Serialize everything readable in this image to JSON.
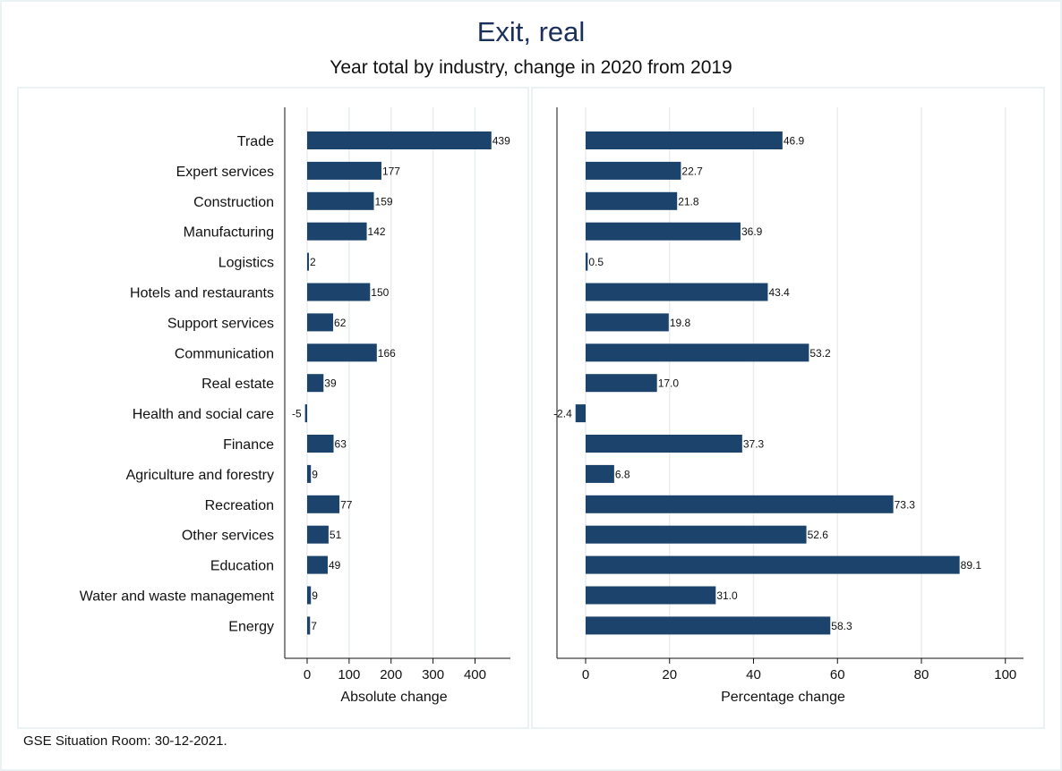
{
  "title": "Exit, real",
  "subtitle": "Year total by industry, change in 2020 from 2019",
  "footer": "GSE Situation Room: 30-12-2021.",
  "colors": {
    "bar": "#1b436b",
    "title": "#1a2f5a",
    "grid": "#e8eef0"
  },
  "chart_data": [
    {
      "type": "bar",
      "orientation": "horizontal",
      "xlabel": "Absolute change",
      "xlim": [
        -60,
        500
      ],
      "xticks": [
        0,
        100,
        200,
        300,
        400
      ],
      "grid": true,
      "categories": [
        "Trade",
        "Expert services",
        "Construction",
        "Manufacturing",
        "Logistics",
        "Hotels and restaurants",
        "Support services",
        "Communication",
        "Real estate",
        "Health and social care",
        "Finance",
        "Agriculture and forestry",
        "Recreation",
        "Other services",
        "Education",
        "Water and waste management",
        "Energy"
      ],
      "values": [
        439,
        177,
        159,
        142,
        2,
        150,
        62,
        166,
        39,
        -5,
        63,
        9,
        77,
        51,
        49,
        9,
        7
      ],
      "labels": [
        "439",
        "177",
        "159",
        "142",
        "2",
        "150",
        "62",
        "166",
        "39",
        "-5",
        "63",
        "9",
        "77",
        "51",
        "49",
        "9",
        "7"
      ]
    },
    {
      "type": "bar",
      "orientation": "horizontal",
      "xlabel": "Percentage change",
      "xlim": [
        -7,
        105
      ],
      "xticks": [
        0,
        20,
        40,
        60,
        80,
        100
      ],
      "grid": true,
      "categories": [
        "Trade",
        "Expert services",
        "Construction",
        "Manufacturing",
        "Logistics",
        "Hotels and restaurants",
        "Support services",
        "Communication",
        "Real estate",
        "Health and social care",
        "Finance",
        "Agriculture and forestry",
        "Recreation",
        "Other services",
        "Education",
        "Water and waste management",
        "Energy"
      ],
      "values": [
        46.9,
        22.7,
        21.8,
        36.9,
        0.5,
        43.4,
        19.8,
        53.2,
        17.0,
        -2.4,
        37.3,
        6.8,
        73.3,
        52.6,
        89.1,
        31.0,
        58.3
      ],
      "labels": [
        "46.9",
        "22.7",
        "21.8",
        "36.9",
        "0.5",
        "43.4",
        "19.8",
        "53.2",
        "17.0",
        "-2.4",
        "37.3",
        "6.8",
        "73.3",
        "52.6",
        "89.1",
        "31.0",
        "58.3"
      ]
    }
  ]
}
